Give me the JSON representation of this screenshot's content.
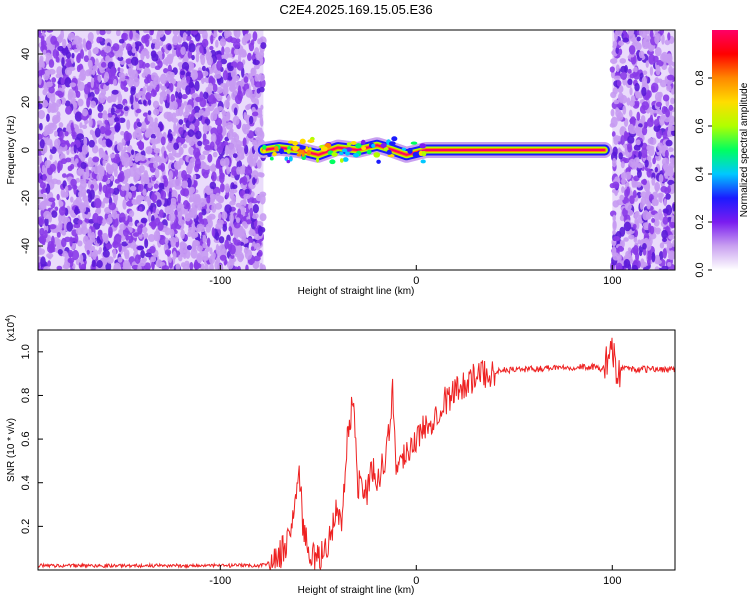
{
  "title": "C2E4.2025.169.15.05.E36",
  "chart_data": [
    {
      "type": "heatmap",
      "xlabel": "Height of straight line (km)",
      "ylabel": "Frequency (Hz)",
      "xlim": [
        -193,
        132
      ],
      "ylim": [
        -50,
        50
      ],
      "x_ticks": [
        -100,
        0,
        100
      ],
      "x_tick_labels": [
        "-100",
        "0",
        "100"
      ],
      "y_ticks": [
        -40,
        -20,
        0,
        20,
        40
      ],
      "y_tick_labels": [
        "-40",
        "-20",
        "0",
        "20",
        "40"
      ],
      "noise_regions": [
        [
          -193,
          -78
        ],
        [
          100,
          132
        ]
      ],
      "signal_trace": {
        "x": [
          -78,
          -70,
          -60,
          -50,
          -40,
          -30,
          -20,
          -12,
          -5,
          0,
          5,
          10,
          30,
          50,
          70,
          90,
          96
        ],
        "y": [
          0,
          1,
          0,
          -2,
          1,
          0,
          2,
          0,
          -2,
          -1,
          0,
          0,
          0,
          0,
          0,
          0,
          0
        ]
      },
      "colorbar": {
        "label": "Normalized spectral amplitude",
        "range": [
          0,
          1
        ],
        "ticks": [
          0.0,
          0.2,
          0.4,
          0.6,
          0.8
        ],
        "tick_labels": [
          "0.0",
          "0.2",
          "0.4",
          "0.6",
          "0.8"
        ],
        "colors": [
          "#ffffff",
          "#c9a0f0",
          "#7a1cf0",
          "#1b1bff",
          "#00c8ff",
          "#00ff60",
          "#b0ff00",
          "#ffdd00",
          "#ff8800",
          "#ff0000",
          "#ff0066"
        ]
      },
      "grid": false
    },
    {
      "type": "line",
      "xlabel": "Height of straight line (km)",
      "ylabel": "SNR (10 * v/v)",
      "y_multiplier_label": "(x10",
      "y_multiplier_exp": "4",
      "y_multiplier_close": ")",
      "xlim": [
        -193,
        132
      ],
      "ylim": [
        0,
        1.1
      ],
      "x_ticks": [
        -100,
        0,
        100
      ],
      "x_tick_labels": [
        "-100",
        "0",
        "100"
      ],
      "y_ticks": [
        0.2,
        0.4,
        0.6,
        0.8,
        1.0
      ],
      "y_tick_labels": [
        "0.2",
        "0.4",
        "0.6",
        "0.8",
        "1.0"
      ],
      "series": [
        {
          "color": "#ee2222",
          "x": [
            -193,
            -150,
            -100,
            -80,
            -72,
            -66,
            -62,
            -60,
            -58,
            -55,
            -52,
            -50,
            -45,
            -40,
            -38,
            -35,
            -32,
            -30,
            -28,
            -25,
            -22,
            -20,
            -18,
            -15,
            -12,
            -10,
            -8,
            -5,
            -2,
            0,
            5,
            10,
            15,
            20,
            25,
            30,
            35,
            40,
            50,
            60,
            70,
            80,
            90,
            95,
            98,
            100,
            102,
            105,
            110,
            120,
            132
          ],
          "y": [
            0.02,
            0.02,
            0.02,
            0.02,
            0.04,
            0.12,
            0.28,
            0.5,
            0.22,
            0.08,
            0.06,
            0.04,
            0.12,
            0.3,
            0.18,
            0.62,
            0.8,
            0.38,
            0.42,
            0.35,
            0.48,
            0.4,
            0.46,
            0.55,
            0.82,
            0.45,
            0.5,
            0.55,
            0.58,
            0.6,
            0.66,
            0.72,
            0.78,
            0.82,
            0.86,
            0.88,
            0.9,
            0.91,
            0.92,
            0.92,
            0.93,
            0.93,
            0.93,
            0.92,
            0.96,
            1.05,
            0.86,
            0.93,
            0.92,
            0.92,
            0.92
          ]
        }
      ],
      "grid": false
    }
  ]
}
